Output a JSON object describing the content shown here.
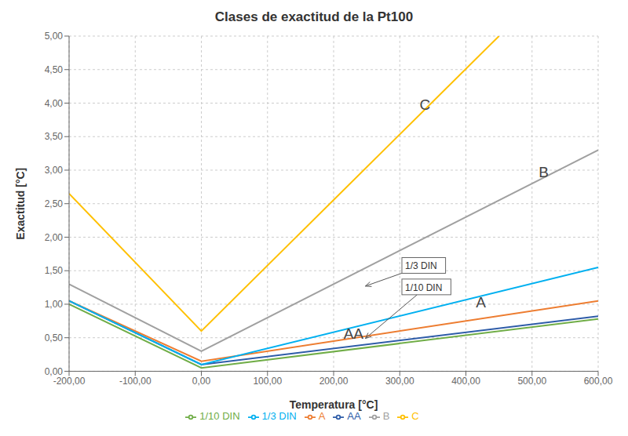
{
  "chart_data": {
    "type": "line",
    "title": "Clases de exactitud de la Pt100",
    "xlabel": "Temperatura [°C]",
    "ylabel": "Exactitud [°C]",
    "xlim": [
      -200,
      600
    ],
    "ylim": [
      0.0,
      5.0
    ],
    "xticks": [
      {
        "value": -200,
        "label": "-200,00"
      },
      {
        "value": -100,
        "label": "-100,00"
      },
      {
        "value": 0,
        "label": "0,00"
      },
      {
        "value": 100,
        "label": "100,00"
      },
      {
        "value": 200,
        "label": "200,00"
      },
      {
        "value": 300,
        "label": "300,00"
      },
      {
        "value": 400,
        "label": "400,00"
      },
      {
        "value": 500,
        "label": "500,00"
      },
      {
        "value": 600,
        "label": "600,00"
      }
    ],
    "yticks": [
      {
        "value": 0.0,
        "label": "0,00"
      },
      {
        "value": 0.5,
        "label": "0,50"
      },
      {
        "value": 1.0,
        "label": "1,00"
      },
      {
        "value": 1.5,
        "label": "1,50"
      },
      {
        "value": 2.0,
        "label": "2,00"
      },
      {
        "value": 2.5,
        "label": "2,50"
      },
      {
        "value": 3.0,
        "label": "3,00"
      },
      {
        "value": 3.5,
        "label": "3,50"
      },
      {
        "value": 4.0,
        "label": "4,00"
      },
      {
        "value": 4.5,
        "label": "4,50"
      },
      {
        "value": 5.0,
        "label": "5,00"
      }
    ],
    "grid": true,
    "legend": "bottom",
    "series": [
      {
        "name": "AA",
        "color": "#2e5ca8",
        "x": [
          -200,
          0,
          600
        ],
        "values": [
          1.05,
          0.1,
          0.82
        ]
      },
      {
        "name": "A",
        "color": "#ed7d31",
        "x": [
          -200,
          0,
          600
        ],
        "values": [
          1.05,
          0.15,
          1.05
        ]
      },
      {
        "name": "B",
        "color": "#a0a0a0",
        "x": [
          -200,
          0,
          600
        ],
        "values": [
          1.3,
          0.3,
          3.3
        ]
      },
      {
        "name": "C",
        "color": "#ffc000",
        "x": [
          -200,
          0,
          450
        ],
        "values": [
          2.65,
          0.6,
          5.0
        ]
      },
      {
        "name": "1/3 DIN",
        "color": "#00b0f0",
        "x": [
          -200,
          0,
          600
        ],
        "values": [
          1.05,
          0.1,
          1.55
        ]
      },
      {
        "name": "1/10 DIN",
        "color": "#70ad47",
        "x": [
          -200,
          0,
          600
        ],
        "values": [
          1.0,
          0.05,
          0.78
        ]
      }
    ],
    "annotations": [
      {
        "text": "AA",
        "x": 215,
        "y": 0.48
      },
      {
        "text": "A",
        "x": 415,
        "y": 0.95
      },
      {
        "text": "B",
        "x": 510,
        "y": 2.9
      },
      {
        "text": "C",
        "x": 330,
        "y": 3.9
      },
      {
        "text": "1/3 DIN",
        "x": 308,
        "y": 1.52,
        "target": [
          248,
          1.27
        ]
      },
      {
        "text": "1/10 DIN",
        "x": 308,
        "y": 1.2,
        "target": [
          248,
          0.49
        ]
      }
    ]
  }
}
